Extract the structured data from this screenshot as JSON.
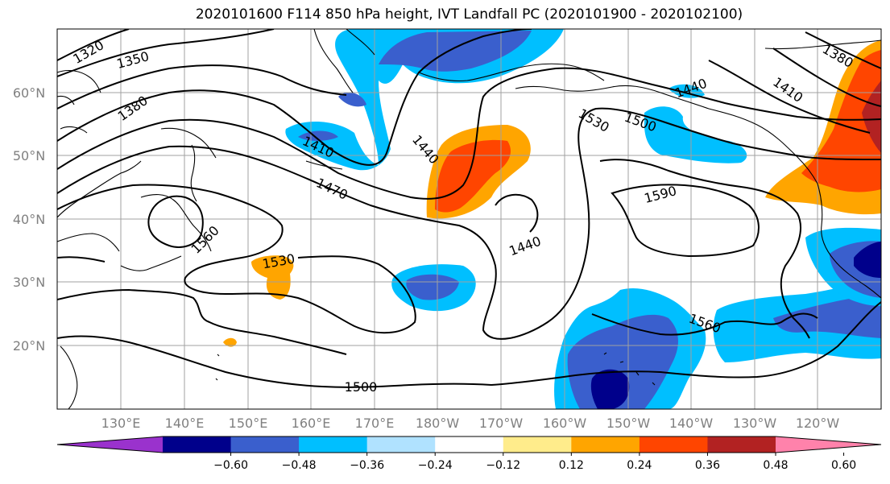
{
  "title": "2020101600 F114 850 hPa height, IVT Landfall PC (2020101900 - 2020102100)",
  "lat_labels": [
    "60°N",
    "50°N",
    "40°N",
    "30°N",
    "20°N"
  ],
  "lon_labels": [
    "130°E",
    "140°E",
    "150°E",
    "160°E",
    "170°E",
    "180°W",
    "170°W",
    "160°W",
    "150°W",
    "140°W",
    "130°W",
    "120°W"
  ],
  "contour_labels": [
    "1320",
    "1350",
    "1380",
    "1410",
    "1440",
    "1470",
    "1500",
    "1530",
    "1560",
    "1590",
    "1440",
    "1530",
    "1560",
    "1500",
    "1440",
    "1410",
    "1380"
  ],
  "colorbar": {
    "colors": [
      "#9a32cd",
      "#00008b",
      "#3a5fcd",
      "#00bfff",
      "#b0e2ff",
      "#ffffff",
      "#ffec8b",
      "#ffa500",
      "#ff4500",
      "#b22222",
      "#ff82ab"
    ],
    "ticks": [
      "−0.60",
      "−0.48",
      "−0.36",
      "−0.24",
      "−0.12",
      "0.12",
      "0.24",
      "0.36",
      "0.48",
      "0.60"
    ]
  }
}
